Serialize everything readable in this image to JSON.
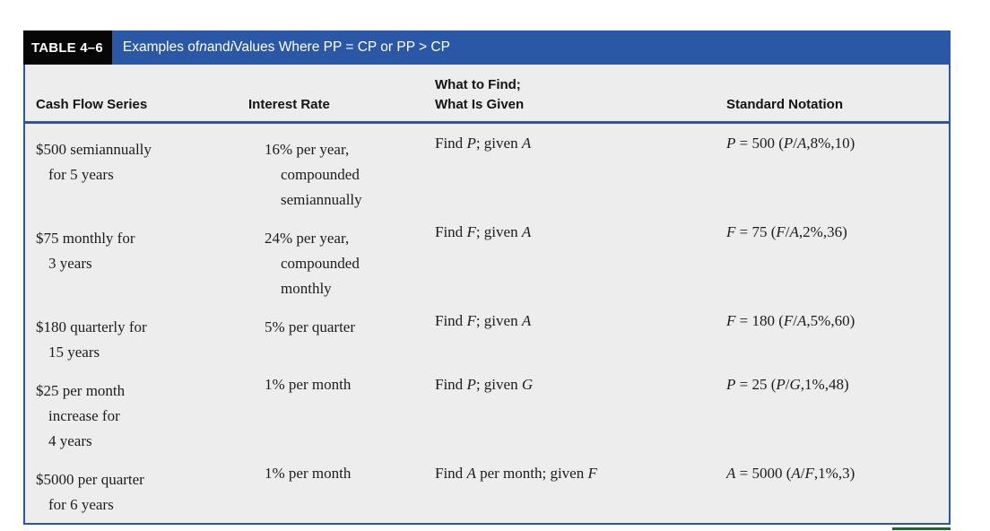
{
  "table": {
    "label": "TABLE 4–6",
    "title": "Examples of *n* and *i* Values Where PP = CP or PP > CP",
    "colors": {
      "band_blue": "#2a58a6",
      "border_blue": "#2a57a5",
      "label_bg": "#060606",
      "body_bg": "#ededee",
      "accent_green": "#2d5c36",
      "header_text": "#141414",
      "body_text": "#1c1c1c"
    },
    "headers": {
      "col1": "Cash Flow Series",
      "col2": "Interest Rate",
      "col3_line1": "What to Find;",
      "col3_line2": "What Is Given",
      "col4": "Standard Notation"
    },
    "rows": [
      {
        "cash_flow": [
          "$500 semiannually",
          "for 5 years"
        ],
        "interest_rate": [
          "16% per year,",
          "compounded",
          "semiannually"
        ],
        "what_to_find": "Find *P*; given *A*",
        "standard_notation": "*P* = 500 (*P*/*A*,8%,10)"
      },
      {
        "cash_flow": [
          "$75 monthly for",
          "3 years"
        ],
        "interest_rate": [
          "24% per year,",
          "compounded",
          "monthly"
        ],
        "what_to_find": "Find *F*; given *A*",
        "standard_notation": "*F* = 75 (*F*/*A*,2%,36)"
      },
      {
        "cash_flow": [
          "$180 quarterly for",
          "15 years"
        ],
        "interest_rate": [
          "5% per quarter"
        ],
        "what_to_find": "Find *F*; given *A*",
        "standard_notation": "*F* = 180 (*F*/*A*,5%,60)"
      },
      {
        "cash_flow": [
          "$25 per month",
          "increase for",
          "4 years"
        ],
        "interest_rate": [
          "1% per month"
        ],
        "what_to_find": "Find *P*; given *G*",
        "standard_notation": "*P* = 25 (*P*/*G*,1%,48)"
      },
      {
        "cash_flow": [
          "$5000 per quarter",
          "for 6 years"
        ],
        "interest_rate": [
          "1% per month"
        ],
        "what_to_find": "Find *A* per month; given *F*",
        "standard_notation": "*A* = 5000 (*A*/*F*,1%,3)"
      }
    ]
  }
}
